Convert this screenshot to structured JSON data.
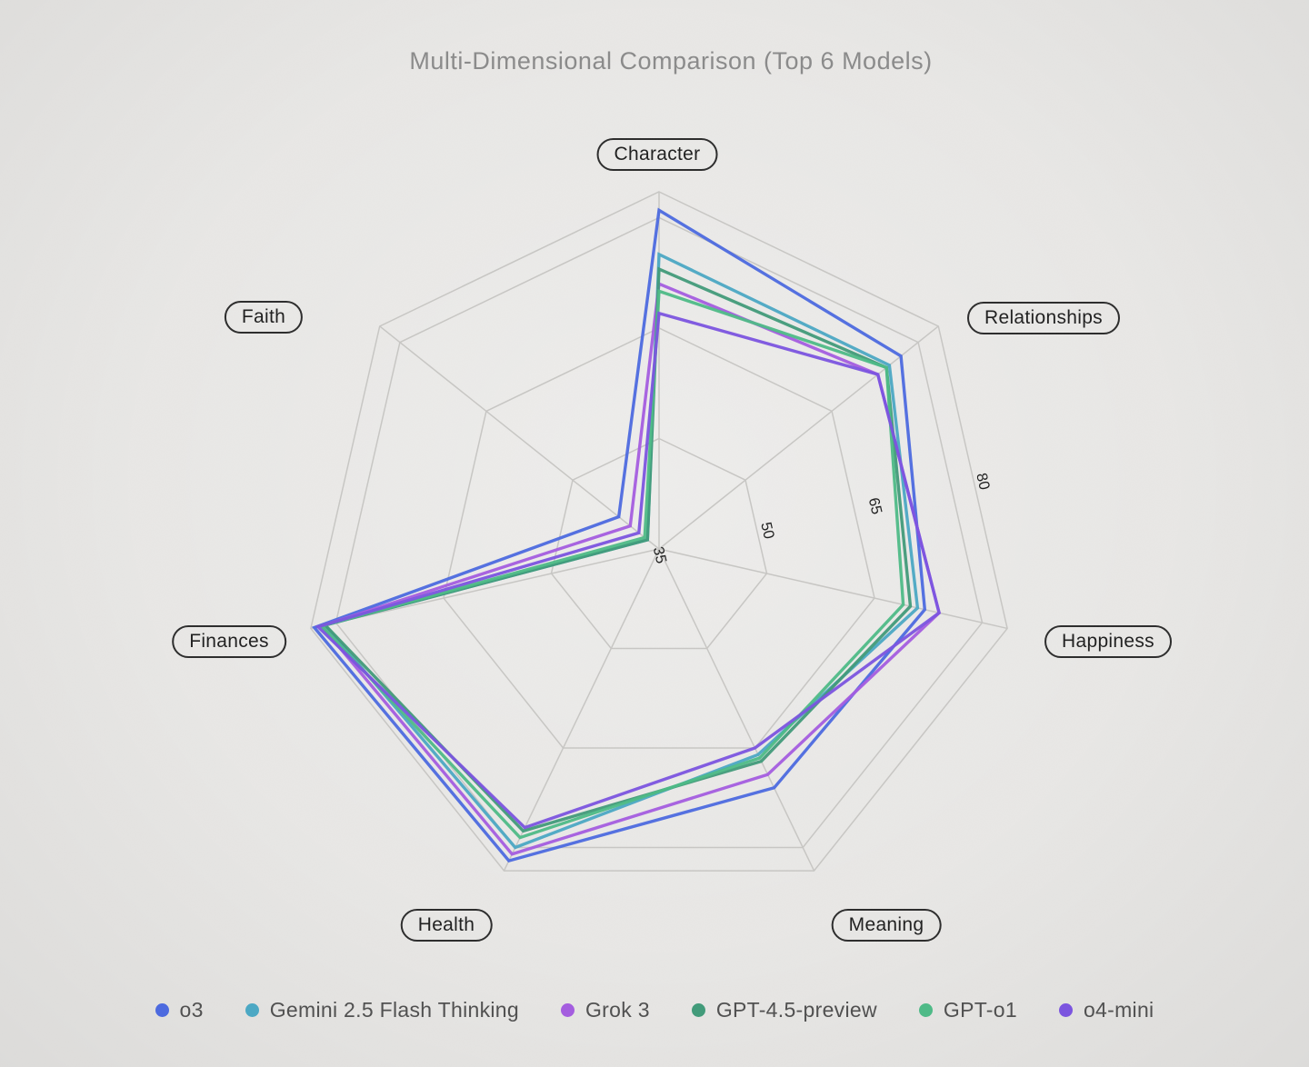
{
  "title": "Multi-Dimensional Comparison (Top 6 Models)",
  "chart_data": {
    "type": "radar",
    "categories": [
      "Character",
      "Relationships",
      "Happiness",
      "Meaning",
      "Health",
      "Finances",
      "Faith"
    ],
    "radial_ticks": [
      35,
      50,
      65,
      80
    ],
    "radial_range": [
      35,
      83.5
    ],
    "grid": true,
    "legend_position": "bottom",
    "series": [
      {
        "name": "o3",
        "color": "#4a68e0",
        "values": [
          81,
          77,
          72,
          71,
          82,
          83,
          42
        ]
      },
      {
        "name": "Gemini 2.5 Flash Thinking",
        "color": "#49a8c4",
        "values": [
          75,
          75,
          71,
          66,
          80,
          81.5,
          37
        ]
      },
      {
        "name": "Grok 3",
        "color": "#a45be0",
        "values": [
          71,
          73,
          74,
          69,
          81,
          82,
          40
        ]
      },
      {
        "name": "GPT-4.5-preview",
        "color": "#3f9a78",
        "values": [
          73,
          74.5,
          70,
          67,
          77.5,
          81.5,
          37
        ]
      },
      {
        "name": "GPT-o1",
        "color": "#4cba86",
        "values": [
          70,
          74.5,
          69,
          66.5,
          78.5,
          82,
          37.5
        ]
      },
      {
        "name": "o4-mini",
        "color": "#7a52e0",
        "values": [
          67,
          73,
          74,
          65,
          77,
          82.5,
          38.5
        ]
      }
    ]
  }
}
